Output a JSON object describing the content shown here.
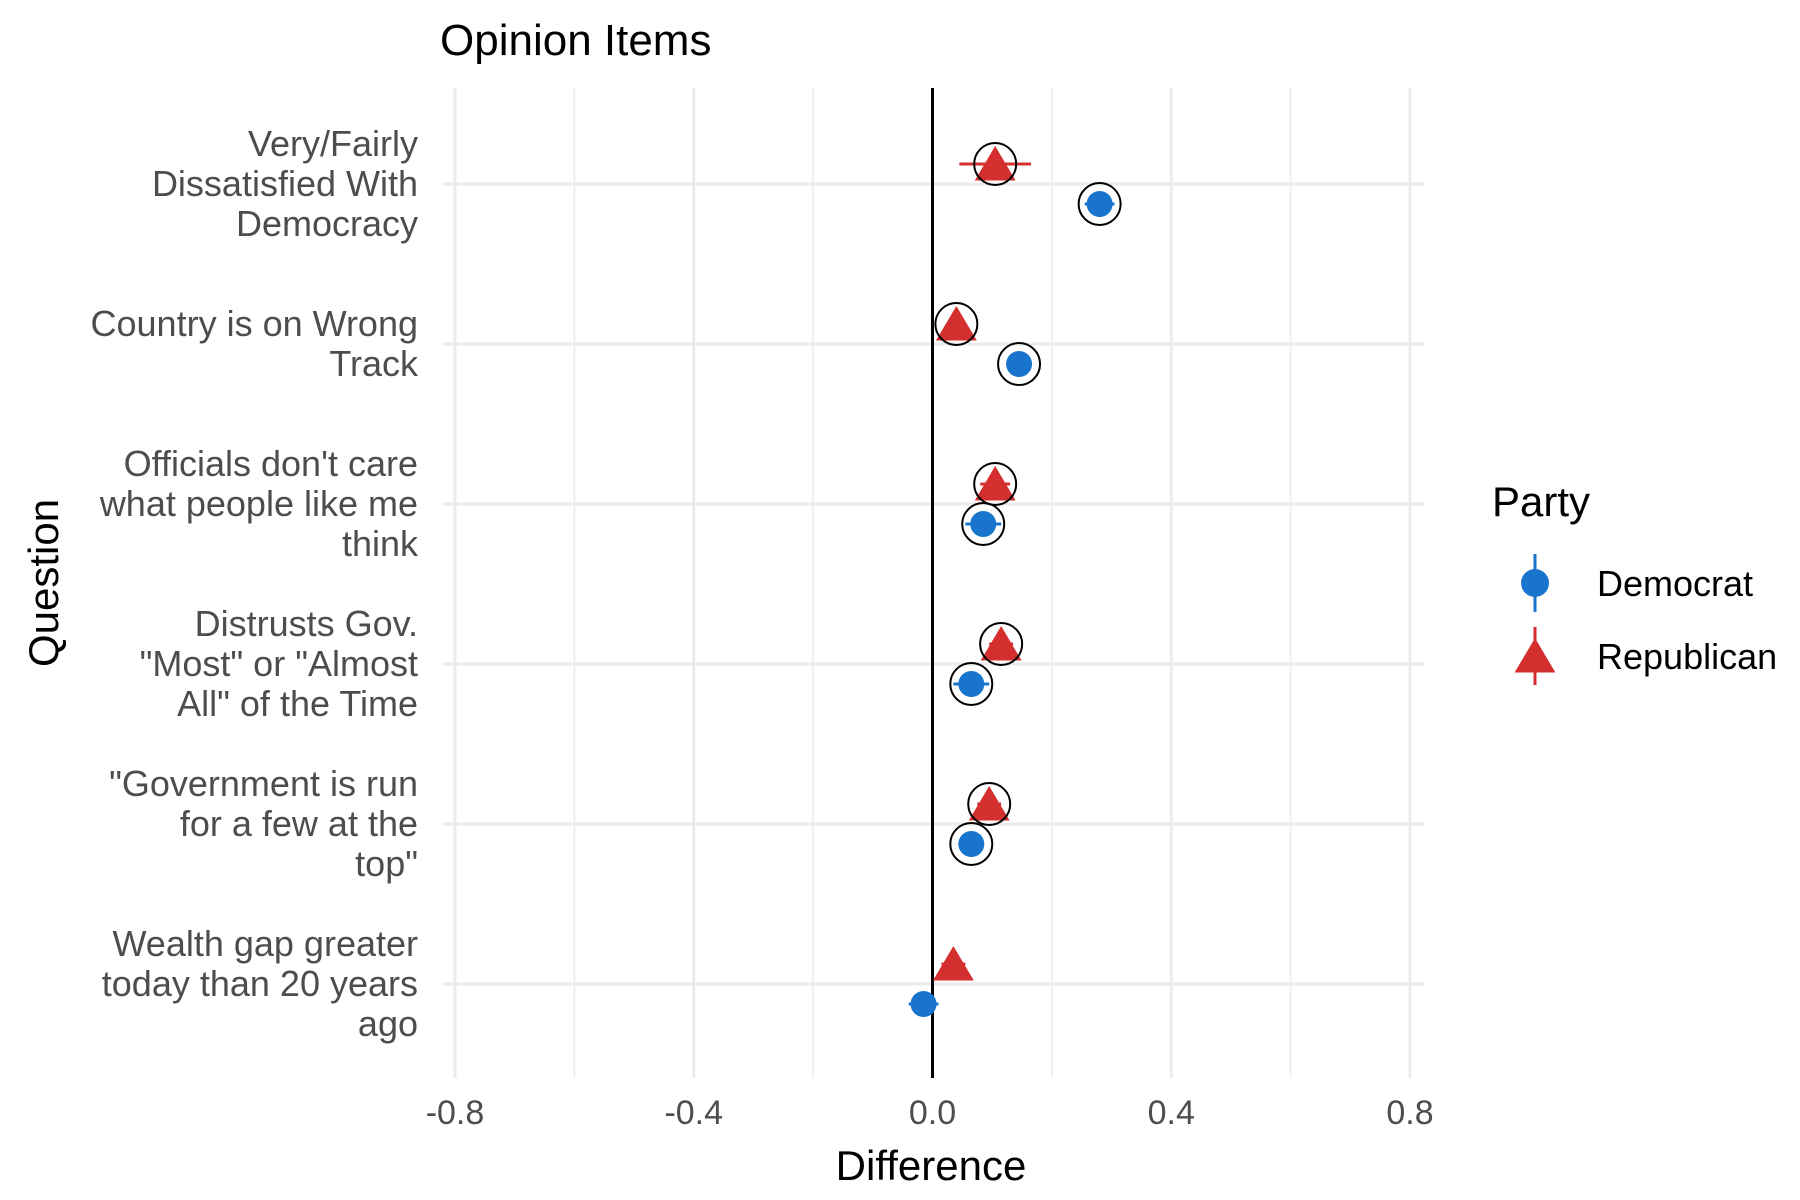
{
  "chart_data": {
    "type": "scatter",
    "title": "Opinion Items",
    "xlabel": "Difference",
    "ylabel": "Question",
    "xlim": [
      -0.8,
      0.8
    ],
    "xticks": [
      "-0.8",
      "-0.4",
      "0.0",
      "0.4",
      "0.8"
    ],
    "xtick_values": [
      -0.8,
      -0.4,
      0.0,
      0.4,
      0.8
    ],
    "reference_line_x": 0,
    "grid": true,
    "legend_position": "right",
    "legend_title": "Party",
    "categories": [
      [
        "Very/Fairly",
        "Dissatisfied With",
        "Democracy"
      ],
      [
        "Country is on Wrong",
        "Track"
      ],
      [
        "Officials don't care",
        "what people like me",
        "think"
      ],
      [
        "Distrusts Gov.",
        "\"Most\" or \"Almost",
        "All\" of the Time"
      ],
      [
        "\"Government is run",
        "for a few at the",
        "top\""
      ],
      [
        "Wealth gap greater",
        "today than 20 years",
        "ago"
      ]
    ],
    "series": [
      {
        "name": "Democrat",
        "marker": "circle",
        "color": "#1874CD",
        "values": [
          0.28,
          0.145,
          0.085,
          0.065,
          0.065,
          -0.015
        ],
        "ci_low": [
          0.255,
          0.13,
          0.055,
          0.035,
          0.05,
          -0.04
        ],
        "ci_high": [
          0.305,
          0.16,
          0.115,
          0.095,
          0.08,
          0.01
        ],
        "highlighted": [
          true,
          true,
          true,
          true,
          true,
          false
        ]
      },
      {
        "name": "Republican",
        "marker": "triangle",
        "color": "#D32F2F",
        "values": [
          0.105,
          0.04,
          0.105,
          0.115,
          0.095,
          0.035
        ],
        "ci_low": [
          0.045,
          0.025,
          0.08,
          0.095,
          0.075,
          0.015
        ],
        "ci_high": [
          0.165,
          0.055,
          0.13,
          0.135,
          0.115,
          0.055
        ],
        "highlighted": [
          true,
          true,
          true,
          true,
          true,
          false
        ]
      }
    ]
  }
}
